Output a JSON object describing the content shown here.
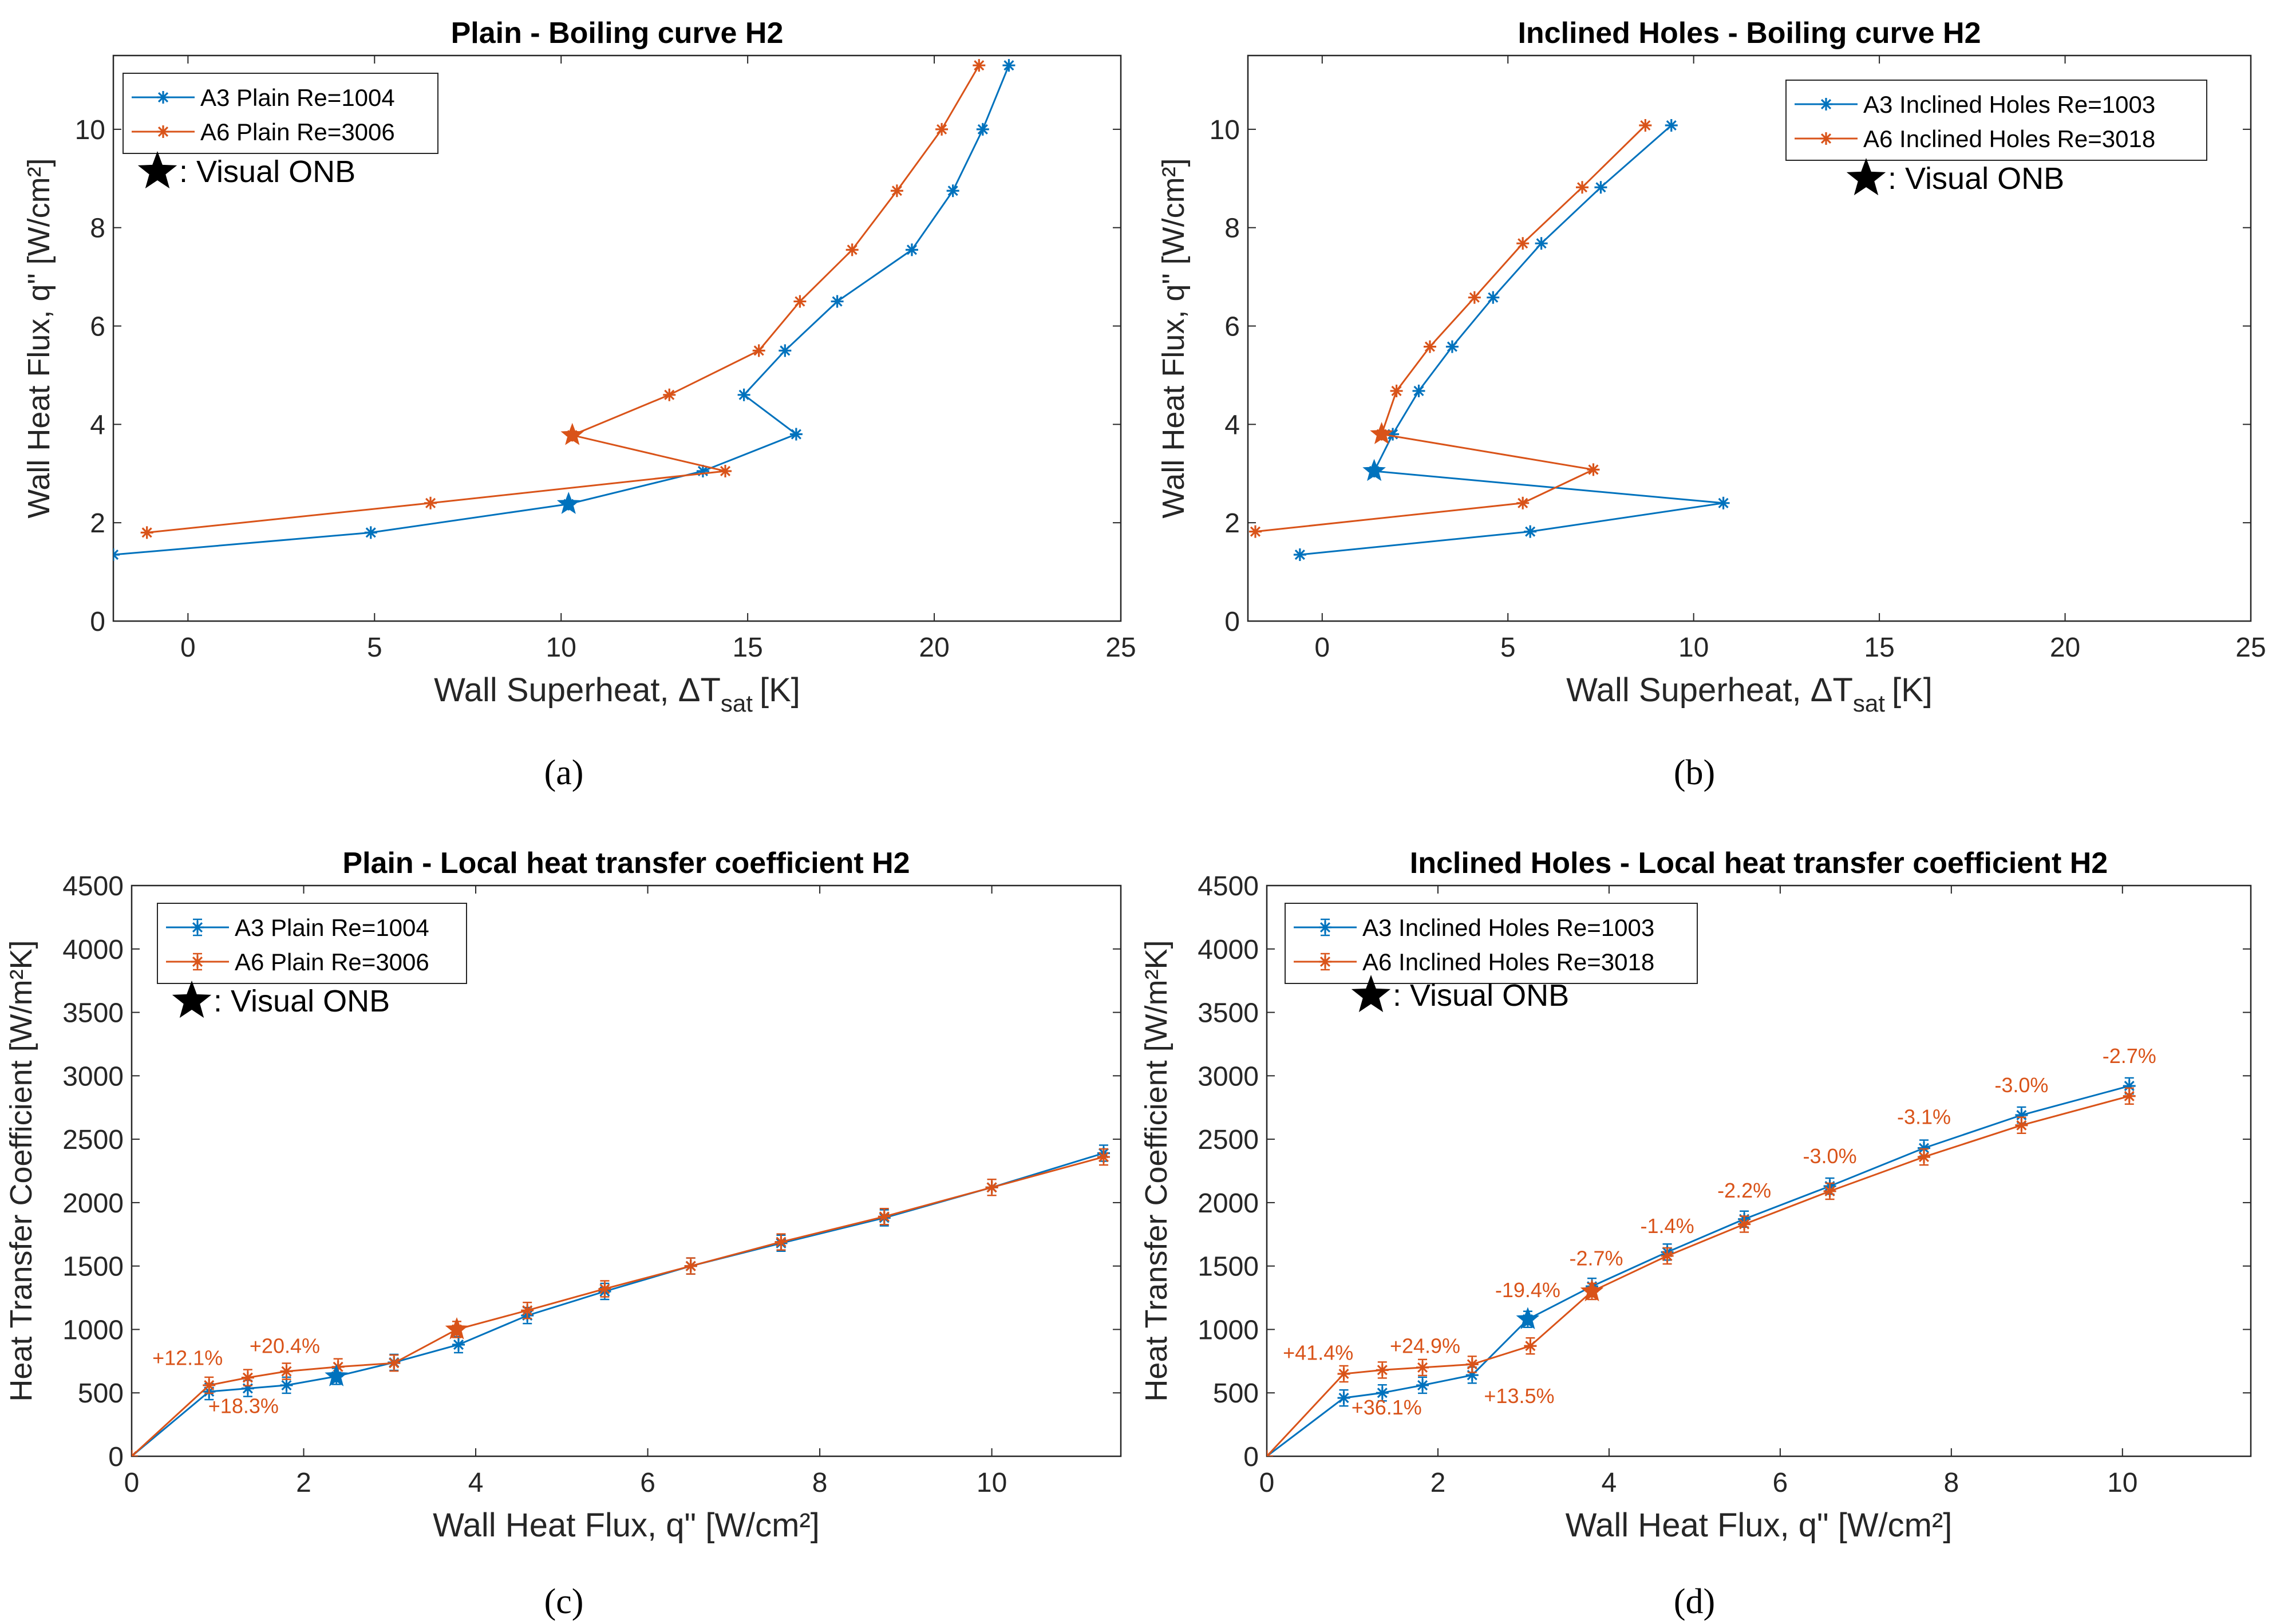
{
  "chart_data": [
    {
      "id": "a",
      "type": "line",
      "title": "Plain - Boiling curve H2",
      "xlabel": "Wall Superheat, ΔT",
      "xlabel_sub": "sat",
      "xlabel_unit": "[K]",
      "ylabel": "Wall Heat Flux, q\" [W/cm²]",
      "xlim": [
        -2,
        25
      ],
      "ylim": [
        0,
        11.5
      ],
      "xticks": [
        0,
        5,
        10,
        15,
        20,
        25
      ],
      "yticks": [
        0,
        2,
        4,
        6,
        8,
        10
      ],
      "grid": false,
      "legend_position": "top-left",
      "series": [
        {
          "name": "A3 Plain Re=1004",
          "color": "#0072BD",
          "x": [
            -2.0,
            4.9,
            10.2,
            13.8,
            16.3,
            14.9,
            16.0,
            17.4,
            19.4,
            20.5,
            21.3,
            22.0
          ],
          "y": [
            1.35,
            1.8,
            2.38,
            3.05,
            3.8,
            4.6,
            5.5,
            6.5,
            7.55,
            8.75,
            10.0,
            11.3
          ]
        },
        {
          "name": "A6 Plain Re=3006",
          "color": "#D95319",
          "x": [
            -1.1,
            6.5,
            14.4,
            10.3,
            12.9,
            15.3,
            16.4,
            17.8,
            19.0,
            20.2,
            21.2
          ],
          "y": [
            1.8,
            2.4,
            3.05,
            3.78,
            4.6,
            5.5,
            6.5,
            7.55,
            8.75,
            10.0,
            11.3
          ]
        }
      ],
      "onb": [
        {
          "series": 0,
          "x": 10.2,
          "y": 2.38
        },
        {
          "series": 1,
          "x": 10.3,
          "y": 3.78
        }
      ],
      "onb_label": ": Visual ONB",
      "caption": "(a)"
    },
    {
      "id": "b",
      "type": "line",
      "title": "Inclined Holes - Boiling curve H2",
      "xlabel": "Wall Superheat, ΔT",
      "xlabel_sub": "sat",
      "xlabel_unit": "[K]",
      "ylabel": "Wall Heat Flux, q\" [W/cm²]",
      "xlim": [
        -2,
        25
      ],
      "ylim": [
        0,
        11.5
      ],
      "xticks": [
        0,
        5,
        10,
        15,
        20,
        25
      ],
      "yticks": [
        0,
        2,
        4,
        6,
        8,
        10
      ],
      "grid": false,
      "legend_position": "top-right",
      "series": [
        {
          "name": "A3 Inclined Holes Re=1003",
          "color": "#0072BD",
          "x": [
            -0.6,
            5.6,
            10.8,
            1.4,
            1.9,
            2.6,
            3.5,
            4.6,
            5.9,
            7.5,
            9.4
          ],
          "y": [
            1.35,
            1.82,
            2.4,
            3.05,
            3.8,
            4.68,
            5.58,
            6.58,
            7.68,
            8.82,
            10.08
          ]
        },
        {
          "name": "A6 Inclined Holes Re=3018",
          "color": "#D95319",
          "x": [
            -1.8,
            5.4,
            7.3,
            1.6,
            2.0,
            2.9,
            4.1,
            5.4,
            7.0,
            8.7
          ],
          "y": [
            1.82,
            2.4,
            3.08,
            3.8,
            4.68,
            5.58,
            6.58,
            7.68,
            8.82,
            10.08
          ]
        }
      ],
      "onb": [
        {
          "series": 0,
          "x": 1.4,
          "y": 3.05
        },
        {
          "series": 1,
          "x": 1.6,
          "y": 3.8
        }
      ],
      "onb_label": ": Visual ONB",
      "caption": "(b)"
    },
    {
      "id": "c",
      "type": "line",
      "title": "Plain - Local heat transfer coefficient H2",
      "xlabel": "Wall Heat Flux, q\" [W/cm²]",
      "ylabel": "Heat Transfer Coefficient [W/m²K]",
      "xlim": [
        0,
        11.5
      ],
      "ylim": [
        0,
        4500
      ],
      "xticks": [
        0,
        2,
        4,
        6,
        8,
        10
      ],
      "yticks": [
        0,
        500,
        1000,
        1500,
        2000,
        2500,
        3000,
        3500,
        4000,
        4500
      ],
      "grid": false,
      "legend_position": "top-left",
      "series": [
        {
          "name": "A3 Plain Re=1004",
          "color": "#0072BD",
          "x": [
            0,
            0.9,
            1.35,
            1.8,
            2.38,
            3.05,
            3.8,
            4.6,
            5.5,
            6.5,
            7.55,
            8.75,
            10.0,
            11.3
          ],
          "y": [
            0,
            510,
            535,
            560,
            630,
            740,
            880,
            1110,
            1300,
            1500,
            1680,
            1880,
            2120,
            2390
          ]
        },
        {
          "name": "A6 Plain Re=3006",
          "color": "#D95319",
          "x": [
            0,
            0.9,
            1.35,
            1.8,
            2.4,
            3.05,
            3.78,
            4.6,
            5.5,
            6.5,
            7.55,
            8.75,
            10.0,
            11.3
          ],
          "y": [
            0,
            560,
            620,
            670,
            705,
            735,
            1000,
            1150,
            1320,
            1500,
            1690,
            1890,
            2120,
            2360
          ]
        }
      ],
      "onb": [
        {
          "series": 0,
          "x": 2.38,
          "y": 630
        },
        {
          "series": 1,
          "x": 3.78,
          "y": 1000
        }
      ],
      "onb_label": ": Visual ONB",
      "annotations": [
        {
          "text": "+12.1%",
          "x": 0.65,
          "y": 720,
          "color": "#D95319"
        },
        {
          "text": "+20.4%",
          "x": 1.78,
          "y": 815,
          "color": "#D95319"
        },
        {
          "text": "+18.3%",
          "x": 1.3,
          "y": 340,
          "color": "#D95319"
        }
      ],
      "caption": "(c)"
    },
    {
      "id": "d",
      "type": "line",
      "title": "Inclined Holes - Local heat transfer coefficient H2",
      "xlabel": "Wall Heat Flux, q\" [W/cm²]",
      "ylabel": "Heat Transfer Coefficient [W/m²K]",
      "xlim": [
        0,
        11.5
      ],
      "ylim": [
        0,
        4500
      ],
      "xticks": [
        0,
        2,
        4,
        6,
        8,
        10
      ],
      "yticks": [
        0,
        500,
        1000,
        1500,
        2000,
        2500,
        3000,
        3500,
        4000,
        4500
      ],
      "grid": false,
      "legend_position": "top-left",
      "series": [
        {
          "name": "A3 Inclined Holes Re=1003",
          "color": "#0072BD",
          "x": [
            0,
            0.9,
            1.35,
            1.82,
            2.4,
            3.05,
            3.8,
            4.68,
            5.58,
            6.58,
            7.68,
            8.82,
            10.08
          ],
          "y": [
            0,
            460,
            500,
            560,
            640,
            1080,
            1340,
            1610,
            1870,
            2130,
            2430,
            2690,
            2920
          ]
        },
        {
          "name": "A6 Inclined Holes Re=3018",
          "color": "#D95319",
          "x": [
            0,
            0.9,
            1.35,
            1.82,
            2.4,
            3.08,
            3.8,
            4.68,
            5.58,
            6.58,
            7.68,
            8.82,
            10.08
          ],
          "y": [
            0,
            650,
            680,
            700,
            725,
            870,
            1300,
            1580,
            1830,
            2090,
            2360,
            2610,
            2840
          ]
        }
      ],
      "onb": [
        {
          "series": 0,
          "x": 3.05,
          "y": 1080
        },
        {
          "series": 1,
          "x": 3.8,
          "y": 1300
        }
      ],
      "onb_label": ": Visual ONB",
      "annotations": [
        {
          "text": "+41.4%",
          "x": 0.6,
          "y": 760,
          "color": "#D95319"
        },
        {
          "text": "+24.9%",
          "x": 1.85,
          "y": 815,
          "color": "#D95319"
        },
        {
          "text": "+36.1%",
          "x": 1.4,
          "y": 330,
          "color": "#D95319"
        },
        {
          "text": "+13.5%",
          "x": 2.95,
          "y": 420,
          "color": "#D95319"
        },
        {
          "text": "-19.4%",
          "x": 3.05,
          "y": 1255,
          "color": "#D95319"
        },
        {
          "text": "-2.7%",
          "x": 3.85,
          "y": 1505,
          "color": "#D95319"
        },
        {
          "text": "-1.4%",
          "x": 4.68,
          "y": 1760,
          "color": "#D95319"
        },
        {
          "text": "-2.2%",
          "x": 5.58,
          "y": 2040,
          "color": "#D95319"
        },
        {
          "text": "-3.0%",
          "x": 6.58,
          "y": 2310,
          "color": "#D95319"
        },
        {
          "text": "-3.1%",
          "x": 7.68,
          "y": 2620,
          "color": "#D95319"
        },
        {
          "text": "-3.0%",
          "x": 8.82,
          "y": 2870,
          "color": "#D95319"
        },
        {
          "text": "-2.7%",
          "x": 10.08,
          "y": 3100,
          "color": "#D95319"
        }
      ],
      "caption": "(d)"
    }
  ]
}
